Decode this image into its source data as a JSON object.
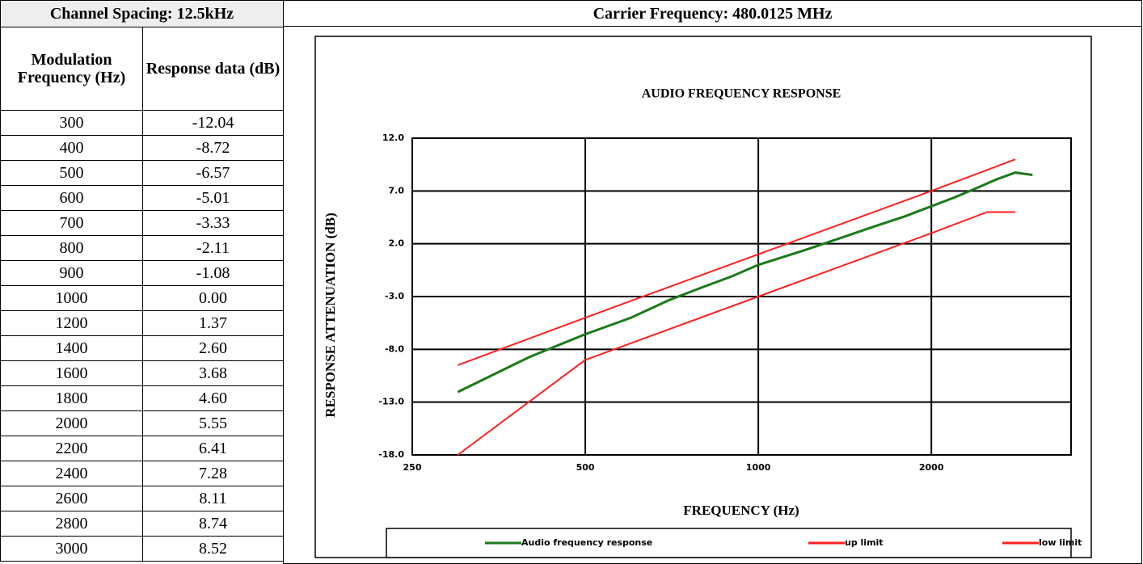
{
  "table": {
    "spacing": "Channel Spacing: 12.5kHz",
    "carrier": "Carrier Frequency: 480.0125 MHz",
    "columns": [
      "Modulation Frequency (Hz)",
      "Response data (dB)"
    ],
    "rows": [
      [
        "300",
        "-12.04"
      ],
      [
        "400",
        "-8.72"
      ],
      [
        "500",
        "-6.57"
      ],
      [
        "600",
        "-5.01"
      ],
      [
        "700",
        "-3.33"
      ],
      [
        "800",
        "-2.11"
      ],
      [
        "900",
        "-1.08"
      ],
      [
        "1000",
        "0.00"
      ],
      [
        "1200",
        "1.37"
      ],
      [
        "1400",
        "2.60"
      ],
      [
        "1600",
        "3.68"
      ],
      [
        "1800",
        "4.60"
      ],
      [
        "2000",
        "5.55"
      ],
      [
        "2200",
        "6.41"
      ],
      [
        "2400",
        "7.28"
      ],
      [
        "2600",
        "8.11"
      ],
      [
        "2800",
        "8.74"
      ],
      [
        "3000",
        "8.52"
      ]
    ]
  },
  "chart_data": {
    "type": "line",
    "title": "AUDIO FREQUENCY RESPONSE",
    "x_label": "FREQUENCY (Hz)",
    "y_label": "RESPONSE ATTENUATION (dB)",
    "xlim": [
      250,
      3500
    ],
    "xticks": [
      250,
      500,
      1000,
      2000
    ],
    "x_log": true,
    "ylim": [
      -18,
      12
    ],
    "yticks": [
      {
        "value": 12,
        "label": "12.0"
      },
      {
        "value": 7,
        "label": "7.0"
      },
      {
        "value": 2,
        "label": "2.0"
      },
      {
        "value": -3,
        "label": "-3.0"
      },
      {
        "value": -8,
        "label": "-8.0"
      },
      {
        "value": -13,
        "label": "-13.0"
      },
      {
        "value": -18,
        "label": "-18.0"
      }
    ],
    "grid": true,
    "legend": "bottom",
    "series": [
      {
        "name": "Audio frequency response",
        "color": "#1a7a1a",
        "x": [
          300,
          400,
          500,
          600,
          700,
          800,
          900,
          1000,
          1200,
          1400,
          1600,
          1800,
          2000,
          2200,
          2400,
          2600,
          2800,
          3000
        ],
        "values": [
          -12.04,
          -8.72,
          -6.57,
          -5.01,
          -3.33,
          -2.11,
          -1.08,
          0.0,
          1.37,
          2.6,
          3.68,
          4.6,
          5.55,
          6.41,
          7.28,
          8.11,
          8.74,
          8.52
        ]
      },
      {
        "name": "up limit",
        "color": "#ff2020",
        "x": [
          300,
          500,
          1000,
          2000,
          2800
        ],
        "values": [
          -9.5,
          -5,
          1,
          7,
          10
        ]
      },
      {
        "name": "low limit",
        "color": "#ff2020",
        "x": [
          300,
          500,
          1000,
          2000,
          2500,
          2800
        ],
        "values": [
          -18,
          -9,
          -3,
          3,
          5,
          5
        ]
      }
    ]
  }
}
